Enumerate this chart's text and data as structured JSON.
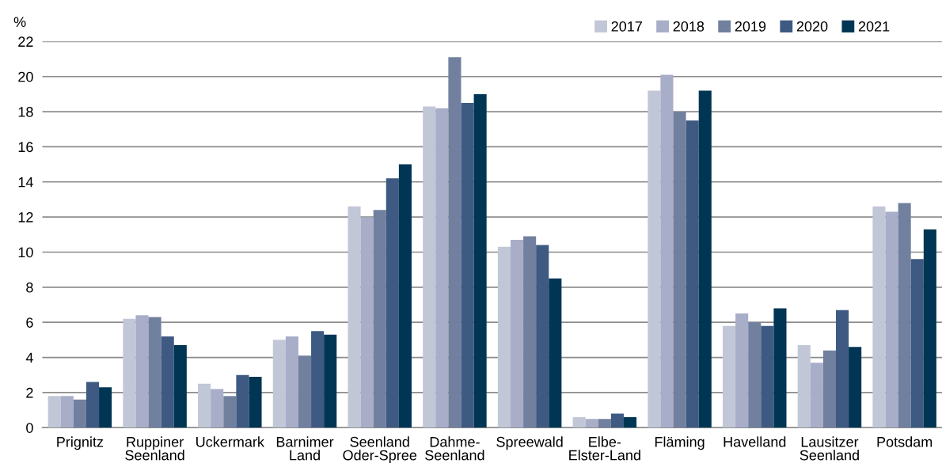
{
  "chart_data": {
    "type": "bar",
    "ylabel": "%",
    "categories": [
      "Prignitz",
      "Ruppiner\nSeenland",
      "Uckermark",
      "Barnimer\nLand",
      "Seenland\nOder-Spree",
      "Dahme-\nSeenland",
      "Spreewald",
      "Elbe-\nElster-Land",
      "Fläming",
      "Havelland",
      "Lausitzer\nSeenland",
      "Potsdam"
    ],
    "series": [
      {
        "name": "2017",
        "color": "#c1c7d6",
        "values": [
          1.8,
          6.2,
          2.5,
          5.0,
          12.6,
          18.3,
          10.3,
          0.6,
          19.2,
          5.8,
          4.7,
          12.6
        ]
      },
      {
        "name": "2018",
        "color": "#a8adc8",
        "values": [
          1.8,
          6.4,
          2.2,
          5.2,
          12.0,
          18.2,
          10.7,
          0.5,
          20.1,
          6.5,
          3.7,
          12.3
        ]
      },
      {
        "name": "2019",
        "color": "#72809f",
        "values": [
          1.6,
          6.3,
          1.8,
          4.1,
          12.4,
          21.1,
          10.9,
          0.5,
          18.0,
          6.0,
          4.4,
          12.8
        ]
      },
      {
        "name": "2020",
        "color": "#3e5a82",
        "values": [
          2.6,
          5.2,
          3.0,
          5.5,
          14.2,
          18.5,
          10.4,
          0.8,
          17.5,
          5.8,
          6.7,
          9.6
        ]
      },
      {
        "name": "2021",
        "color": "#003654",
        "values": [
          2.3,
          4.7,
          2.9,
          5.3,
          15.0,
          19.0,
          8.5,
          0.6,
          19.2,
          6.8,
          4.6,
          11.3
        ]
      }
    ],
    "ylim": [
      0,
      22
    ],
    "yticks": [
      0,
      2,
      4,
      6,
      8,
      10,
      12,
      14,
      16,
      18,
      20,
      22
    ],
    "grid": "y",
    "legend": "top right"
  }
}
